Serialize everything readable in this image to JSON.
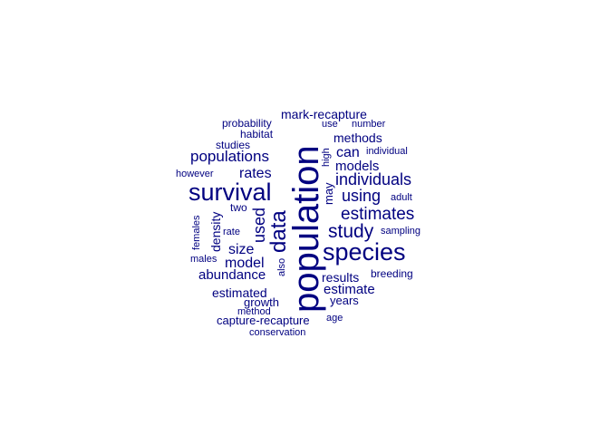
{
  "word_color": "#000080",
  "words": [
    "population",
    "survival",
    "species",
    "data",
    "study",
    "estimates",
    "individuals",
    "using",
    "populations",
    "rates",
    "models",
    "used",
    "size",
    "model",
    "abundance",
    "methods",
    "can",
    "mark-recapture",
    "estimated",
    "estimate",
    "results",
    "density",
    "may",
    "growth",
    "capture-recapture",
    "years",
    "probability",
    "habitat",
    "studies",
    "however",
    "high",
    "use",
    "number",
    "individual",
    "adult",
    "two",
    "rate",
    "females",
    "males",
    "also",
    "breeding",
    "sampling",
    "method",
    "age",
    "conservation"
  ]
}
